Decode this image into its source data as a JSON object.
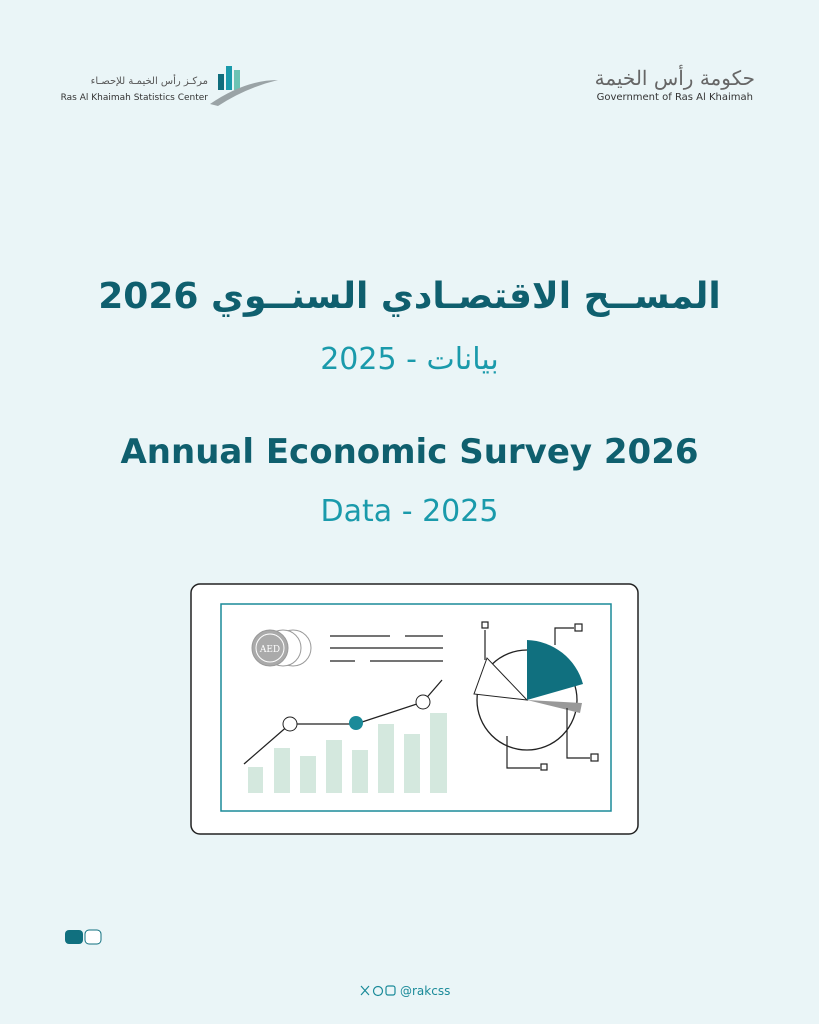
{
  "header": {
    "left_logo": {
      "arabic": "مركـز رأس الخيمـة للإحصـاء",
      "english": "Ras Al Khaimah Statistics Center"
    },
    "right_logo": {
      "arabic": "حكومة رأس الخيمة",
      "english": "Government of Ras Al Khaimah"
    }
  },
  "title": {
    "arabic": "المســح الاقتصـادي السنــوي 2026",
    "arabic_subtitle": "بيانات - 2025",
    "english": "Annual Economic Survey 2026",
    "english_subtitle": "Data - 2025"
  },
  "illustration": {
    "coin_label": "AED"
  },
  "footer": {
    "handle": "@rakcss"
  }
}
